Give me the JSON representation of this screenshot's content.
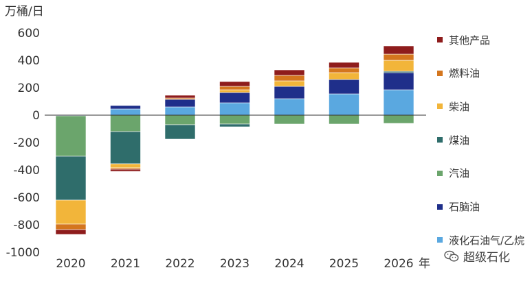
{
  "unit_label": "万桶/日",
  "year_suffix": "年",
  "watermark": {
    "text": "超级石化",
    "icon": "wechat-icon"
  },
  "chart_data": {
    "type": "bar",
    "stacked": true,
    "ylabel": "万桶/日",
    "ylim": [
      -1000,
      600
    ],
    "yticks": [
      600,
      400,
      200,
      0,
      -200,
      -400,
      -600,
      -800,
      -1000
    ],
    "categories": [
      "2020",
      "2021",
      "2022",
      "2023",
      "2024",
      "2025",
      "2026"
    ],
    "legend_position": "right",
    "series": [
      {
        "name": "液化石油气/乙烷",
        "color": "#5aa8e0",
        "values": [
          -5,
          45,
          60,
          90,
          120,
          155,
          185
        ]
      },
      {
        "name": "石脑油",
        "color": "#1f2f8a",
        "values": [
          0,
          25,
          55,
          75,
          90,
          105,
          125
        ]
      },
      {
        "name": "汽油",
        "color": "#6ba56c",
        "values": [
          -295,
          -120,
          -70,
          -65,
          -65,
          -65,
          -60
        ]
      },
      {
        "name": "煤油",
        "color": "#2f6d6b",
        "values": [
          -320,
          -235,
          -105,
          -20,
          0,
          0,
          10
        ]
      },
      {
        "name": "柴油",
        "color": "#f2b53a",
        "values": [
          -175,
          -30,
          0,
          20,
          40,
          50,
          80
        ]
      },
      {
        "name": "燃料油",
        "color": "#d4761e",
        "values": [
          -40,
          -10,
          10,
          25,
          40,
          35,
          45
        ]
      },
      {
        "name": "其他产品",
        "color": "#8e1c1c",
        "values": [
          -35,
          -15,
          20,
          35,
          40,
          40,
          60
        ]
      }
    ]
  }
}
